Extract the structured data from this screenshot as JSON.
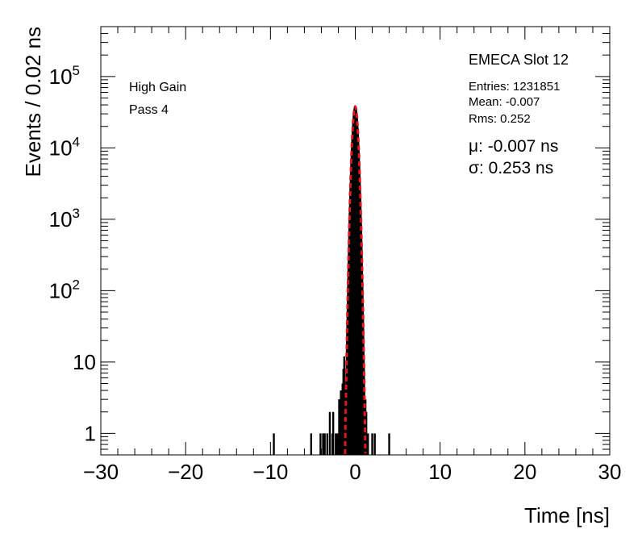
{
  "chart_data": {
    "type": "histogram",
    "xlabel": "Time [ns]",
    "ylabel": "Events / 0.02 ns",
    "xlim": [
      -30,
      30
    ],
    "ylim": [
      0.5,
      500000
    ],
    "yscale": "log",
    "x_ticks": [
      {
        "value": -30,
        "label": "−30"
      },
      {
        "value": -20,
        "label": "−20"
      },
      {
        "value": -10,
        "label": "−10"
      },
      {
        "value": 0,
        "label": "0"
      },
      {
        "value": 10,
        "label": "10"
      },
      {
        "value": 20,
        "label": "20"
      },
      {
        "value": 30,
        "label": "30"
      }
    ],
    "y_ticks": [
      {
        "value": 1,
        "base": "1",
        "exp": ""
      },
      {
        "value": 10,
        "base": "10",
        "exp": ""
      },
      {
        "value": 100,
        "base": "10",
        "exp": "2"
      },
      {
        "value": 1000,
        "base": "10",
        "exp": "3"
      },
      {
        "value": 10000,
        "base": "10",
        "exp": "4"
      },
      {
        "value": 100000,
        "base": "10",
        "exp": "5"
      }
    ],
    "left_text": [
      "High Gain",
      "Pass 4"
    ],
    "stats_title": "EMECA Slot 12",
    "stats": [
      "Entries: 1231851",
      "Mean: -0.007",
      "Rms: 0.252"
    ],
    "fit_lines": [
      {
        "prefix": "μ",
        "text": ": -0.007 ns"
      },
      {
        "prefix": "σ",
        "text": ": 0.253 ns"
      }
    ],
    "fit": {
      "type": "gaussian",
      "mean": -0.007,
      "sigma": 0.253,
      "amplitude": 38000,
      "color": "#e8141a",
      "style": "dashed"
    },
    "histogram_outliers": [
      {
        "x": -9.6,
        "y": 1
      },
      {
        "x": -5.2,
        "y": 1
      },
      {
        "x": -4.1,
        "y": 1
      },
      {
        "x": -3.8,
        "y": 1
      },
      {
        "x": -3.6,
        "y": 1
      },
      {
        "x": -3.3,
        "y": 1
      },
      {
        "x": -3.0,
        "y": 2
      },
      {
        "x": -2.7,
        "y": 1
      },
      {
        "x": -2.6,
        "y": 2
      },
      {
        "x": -2.3,
        "y": 1
      },
      {
        "x": -2.1,
        "y": 1
      },
      {
        "x": -1.9,
        "y": 3
      },
      {
        "x": -1.8,
        "y": 2
      },
      {
        "x": -1.7,
        "y": 4
      },
      {
        "x": -1.6,
        "y": 3
      },
      {
        "x": -1.5,
        "y": 5
      },
      {
        "x": -1.4,
        "y": 8
      },
      {
        "x": -1.3,
        "y": 12
      },
      {
        "x": 1.2,
        "y": 3
      },
      {
        "x": 1.3,
        "y": 2
      },
      {
        "x": 1.5,
        "y": 1
      },
      {
        "x": 2.0,
        "y": 1
      },
      {
        "x": 2.3,
        "y": 1
      },
      {
        "x": 4.0,
        "y": 1
      }
    ],
    "histogram_color": "#000000"
  }
}
